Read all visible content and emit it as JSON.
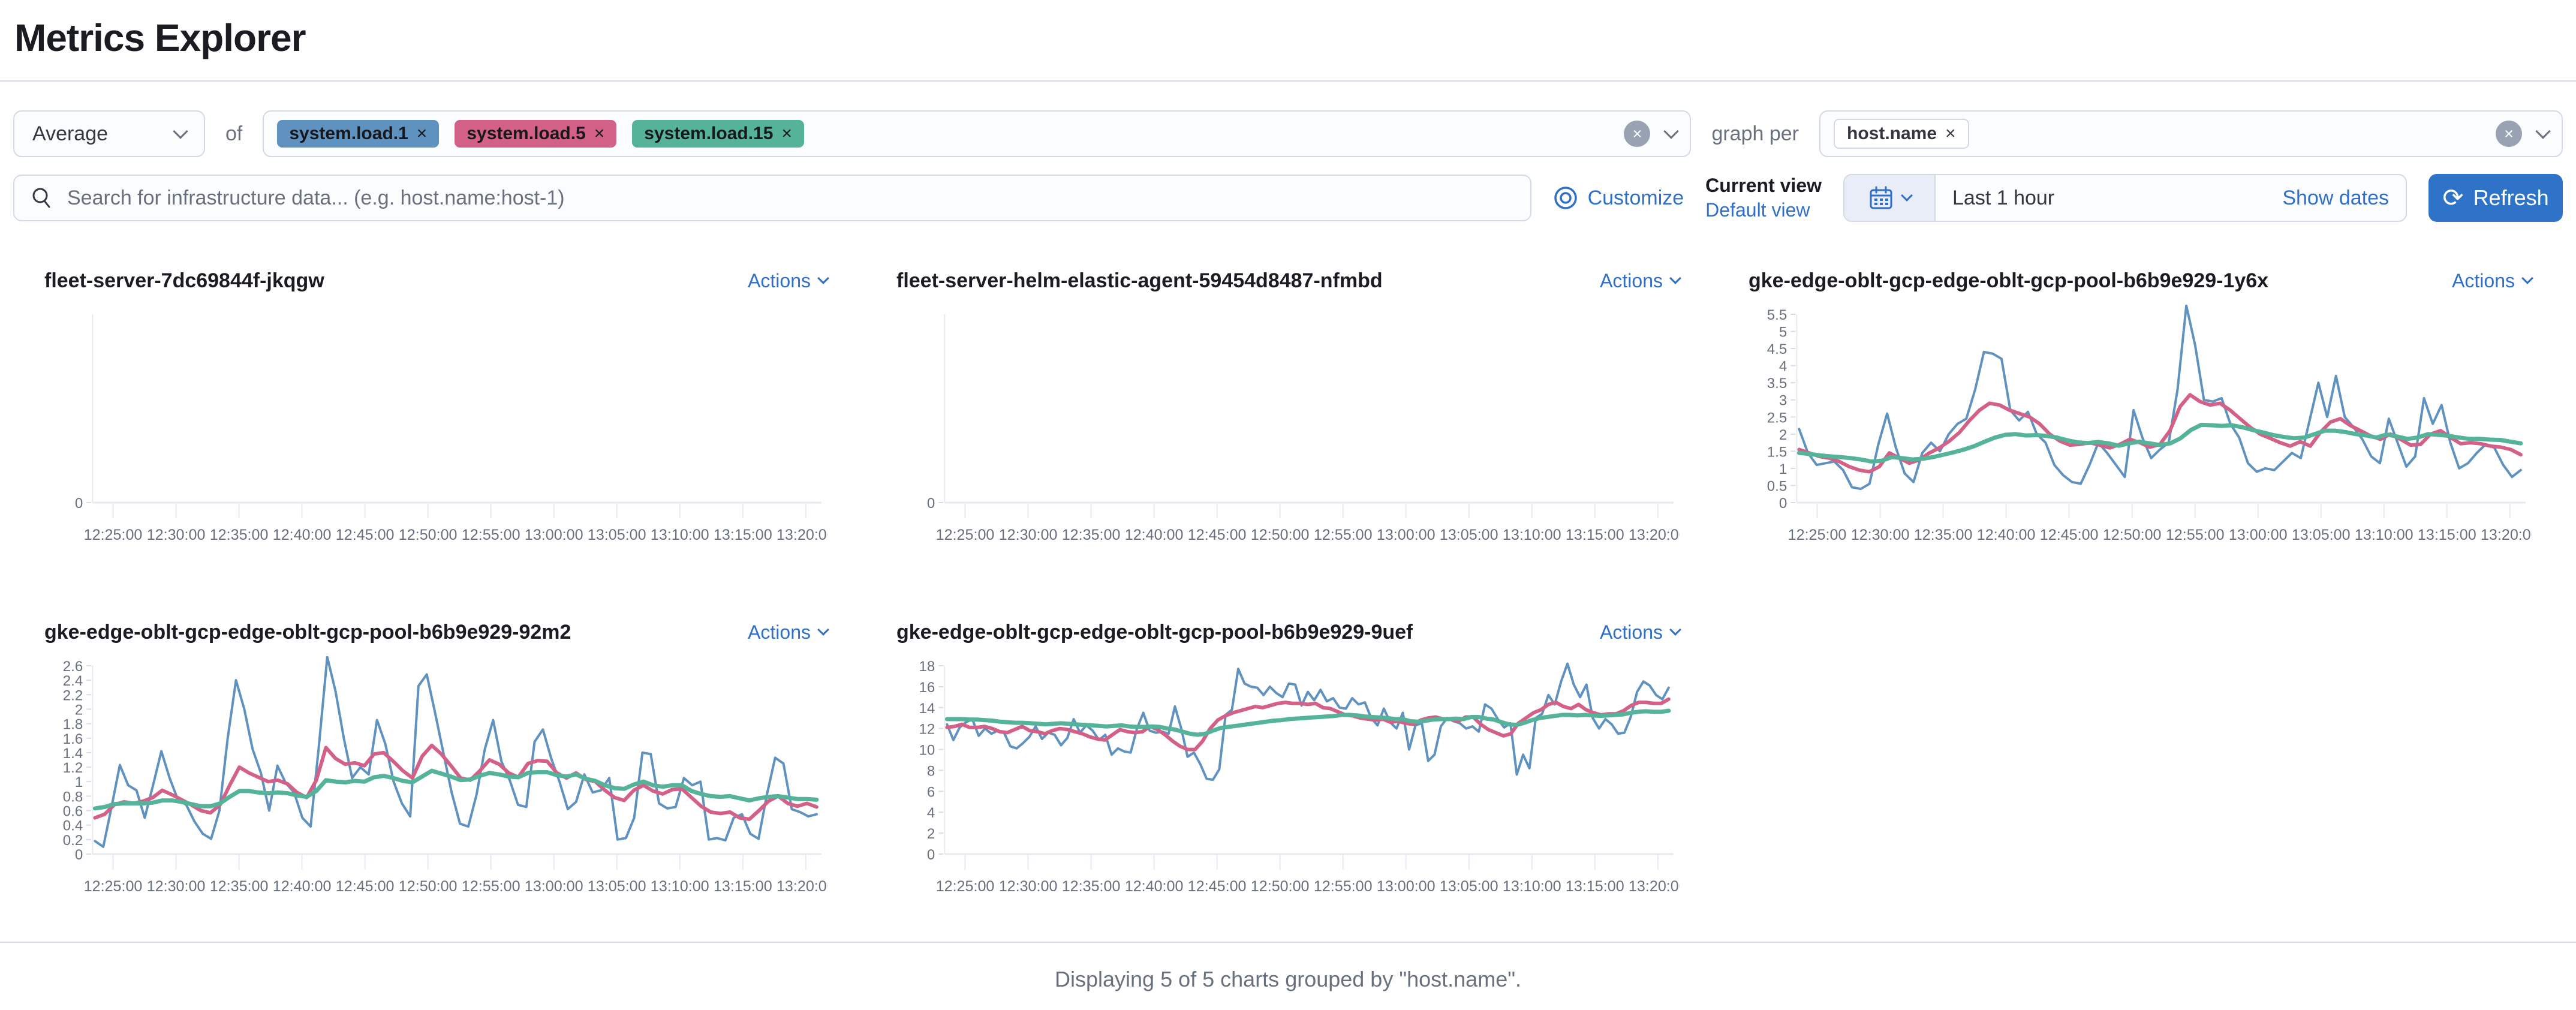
{
  "page": {
    "title": "Metrics Explorer",
    "footer": "Displaying 5 of 5 charts grouped by \"host.name\"."
  },
  "toolbar": {
    "aggregation": {
      "value": "Average"
    },
    "of_label": "of",
    "metrics": [
      {
        "label": "system.load.1",
        "remove": "×",
        "color": "#6092C0"
      },
      {
        "label": "system.load.5",
        "remove": "×",
        "color": "#D36086"
      },
      {
        "label": "system.load.15",
        "remove": "×",
        "color": "#54B399"
      }
    ],
    "graph_per_label": "graph per",
    "groupings": [
      {
        "label": "host.name",
        "remove": "×"
      }
    ],
    "search": {
      "placeholder": "Search for infrastructure data... (e.g. host.name:host-1)"
    },
    "customize_label": "Customize",
    "view": {
      "current": "Current view",
      "default": "Default view"
    },
    "time": {
      "range": "Last 1 hour",
      "show_dates": "Show dates",
      "refresh_label": "Refresh",
      "refresh_glyph": "⟳"
    }
  },
  "actions_label": "Actions",
  "chart_data": [
    {
      "type": "line",
      "title": "fleet-server-7dc69844f-jkqgw",
      "x_ticks": [
        "12:25:00",
        "12:30:00",
        "12:35:00",
        "12:40:00",
        "12:45:00",
        "12:50:00",
        "12:55:00",
        "13:00:00",
        "13:05:00",
        "13:10:00",
        "13:15:00",
        "13:20:00"
      ],
      "y_ticks": [
        0
      ],
      "ylim": [
        0,
        1
      ],
      "series": []
    },
    {
      "type": "line",
      "title": "fleet-server-helm-elastic-agent-59454d8487-nfmbd",
      "x_ticks": [
        "12:25:00",
        "12:30:00",
        "12:35:00",
        "12:40:00",
        "12:45:00",
        "12:50:00",
        "12:55:00",
        "13:00:00",
        "13:05:00",
        "13:10:00",
        "13:15:00",
        "13:20:00"
      ],
      "y_ticks": [
        0
      ],
      "ylim": [
        0,
        1
      ],
      "series": []
    },
    {
      "type": "line",
      "title": "gke-edge-oblt-gcp-edge-oblt-gcp-pool-b6b9e929-1y6x",
      "x_ticks": [
        "12:25:00",
        "12:30:00",
        "12:35:00",
        "12:40:00",
        "12:45:00",
        "12:50:00",
        "12:55:00",
        "13:00:00",
        "13:05:00",
        "13:10:00",
        "13:15:00",
        "13:20:00"
      ],
      "y_ticks": [
        0,
        0.5,
        1,
        1.5,
        2,
        2.5,
        3,
        3.5,
        4,
        4.5,
        5,
        5.5
      ],
      "ylim": [
        0,
        5.5
      ],
      "series": [
        {
          "name": "system.load.1",
          "color": "#6092C0",
          "width": 4,
          "values": [
            2.15,
            1.45,
            1.1,
            1.15,
            1.2,
            0.95,
            0.45,
            0.4,
            0.55,
            1.7,
            2.6,
            1.6,
            0.85,
            0.6,
            1.45,
            1.75,
            1.5,
            2.0,
            2.3,
            2.45,
            3.3,
            4.4,
            4.35,
            4.2,
            2.7,
            2.4,
            2.65,
            2.0,
            1.75,
            1.1,
            0.8,
            0.6,
            0.55,
            1.1,
            1.75,
            1.45,
            1.1,
            0.75,
            2.7,
            1.9,
            1.3,
            1.55,
            1.75,
            3.3,
            5.75,
            4.6,
            3.0,
            2.95,
            3.05,
            2.3,
            1.9,
            1.15,
            0.9,
            1.0,
            0.95,
            1.2,
            1.45,
            1.3,
            2.4,
            3.5,
            2.5,
            3.7,
            2.5,
            2.2,
            1.85,
            1.35,
            1.15,
            2.45,
            1.75,
            1.05,
            1.35,
            3.05,
            2.3,
            2.85,
            1.75,
            1.0,
            1.15,
            1.45,
            1.7,
            1.6,
            1.1,
            0.75,
            0.95
          ]
        },
        {
          "name": "system.load.5",
          "color": "#D36086",
          "width": 6,
          "values": [
            1.55,
            1.45,
            1.35,
            1.3,
            1.2,
            1.05,
            0.95,
            0.9,
            1.05,
            1.45,
            1.3,
            1.15,
            1.25,
            1.45,
            1.6,
            1.8,
            2.05,
            2.4,
            2.7,
            2.9,
            2.85,
            2.7,
            2.6,
            2.5,
            2.3,
            2.0,
            1.8,
            1.68,
            1.7,
            1.75,
            1.68,
            1.6,
            1.7,
            1.85,
            1.75,
            1.62,
            1.7,
            2.1,
            2.8,
            3.15,
            2.95,
            2.85,
            2.9,
            2.7,
            2.45,
            2.2,
            2.0,
            1.88,
            1.75,
            1.65,
            1.78,
            1.65,
            2.05,
            2.35,
            2.45,
            2.25,
            2.1,
            1.95,
            1.85,
            2.0,
            1.85,
            1.68,
            1.7,
            2.0,
            2.1,
            1.9,
            1.72,
            1.75,
            1.72,
            1.65,
            1.62,
            1.55,
            1.4
          ]
        },
        {
          "name": "system.load.15",
          "color": "#54B399",
          "width": 7,
          "values": [
            1.45,
            1.42,
            1.38,
            1.35,
            1.33,
            1.3,
            1.26,
            1.2,
            1.22,
            1.33,
            1.3,
            1.26,
            1.28,
            1.33,
            1.4,
            1.47,
            1.55,
            1.65,
            1.78,
            1.9,
            1.98,
            2.0,
            1.96,
            1.97,
            1.95,
            1.9,
            1.82,
            1.76,
            1.74,
            1.77,
            1.73,
            1.66,
            1.73,
            1.78,
            1.73,
            1.68,
            1.73,
            1.88,
            2.12,
            2.27,
            2.26,
            2.24,
            2.26,
            2.2,
            2.12,
            2.05,
            1.97,
            1.92,
            1.88,
            1.9,
            2.0,
            2.1,
            2.1,
            2.06,
            2.0,
            1.96,
            1.9,
            1.99,
            1.93,
            1.86,
            1.9,
            2.0,
            1.98,
            1.95,
            1.9,
            1.86,
            1.86,
            1.84,
            1.83,
            1.78,
            1.73
          ]
        }
      ]
    },
    {
      "type": "line",
      "title": "gke-edge-oblt-gcp-edge-oblt-gcp-pool-b6b9e929-92m2",
      "x_ticks": [
        "12:25:00",
        "12:30:00",
        "12:35:00",
        "12:40:00",
        "12:45:00",
        "12:50:00",
        "12:55:00",
        "13:00:00",
        "13:05:00",
        "13:10:00",
        "13:15:00",
        "13:20:00"
      ],
      "y_ticks": [
        0,
        0.2,
        0.4,
        0.6,
        0.8,
        1,
        1.2,
        1.4,
        1.6,
        1.8,
        2,
        2.2,
        2.4,
        2.6
      ],
      "ylim": [
        0,
        2.6
      ],
      "series": [
        {
          "name": "system.load.1",
          "color": "#6092C0",
          "width": 4,
          "values": [
            0.18,
            0.1,
            0.65,
            1.23,
            0.95,
            0.88,
            0.5,
            0.95,
            1.42,
            1.05,
            0.75,
            0.68,
            0.45,
            0.28,
            0.21,
            0.6,
            1.6,
            2.4,
            2.0,
            1.45,
            1.12,
            0.6,
            1.22,
            0.98,
            0.85,
            0.5,
            0.38,
            1.5,
            2.72,
            2.25,
            1.6,
            1.05,
            1.2,
            1.1,
            1.85,
            1.52,
            1.0,
            0.7,
            0.52,
            2.32,
            2.48,
            1.95,
            1.4,
            0.85,
            0.42,
            0.38,
            0.82,
            1.45,
            1.85,
            1.28,
            1.02,
            0.68,
            0.65,
            1.55,
            1.72,
            1.32,
            1.0,
            0.62,
            0.72,
            1.1,
            0.85,
            0.88,
            1.05,
            0.2,
            0.22,
            0.5,
            1.4,
            1.38,
            0.7,
            0.63,
            0.65,
            1.05,
            0.95,
            1.0,
            0.2,
            0.22,
            0.19,
            0.5,
            0.55,
            0.28,
            0.21,
            0.82,
            1.33,
            1.25,
            0.62,
            0.58,
            0.52,
            0.55
          ]
        },
        {
          "name": "system.load.5",
          "color": "#D36086",
          "width": 6,
          "values": [
            0.5,
            0.55,
            0.68,
            0.72,
            0.7,
            0.73,
            0.78,
            0.88,
            0.82,
            0.75,
            0.68,
            0.6,
            0.57,
            0.68,
            0.95,
            1.2,
            1.12,
            1.06,
            1.0,
            1.02,
            0.97,
            0.85,
            0.78,
            1.02,
            1.47,
            1.32,
            1.24,
            1.26,
            1.22,
            1.38,
            1.4,
            1.28,
            1.15,
            1.05,
            1.35,
            1.5,
            1.38,
            1.22,
            1.05,
            1.02,
            1.15,
            1.3,
            1.24,
            1.12,
            1.06,
            1.25,
            1.29,
            1.28,
            1.12,
            1.05,
            1.12,
            1.03,
            1.0,
            0.88,
            0.78,
            0.74,
            0.88,
            0.95,
            0.87,
            0.83,
            0.89,
            0.9,
            0.78,
            0.66,
            0.58,
            0.56,
            0.58,
            0.5,
            0.48,
            0.6,
            0.73,
            0.8,
            0.7,
            0.66,
            0.7,
            0.65
          ]
        },
        {
          "name": "system.load.15",
          "color": "#54B399",
          "width": 7,
          "values": [
            0.63,
            0.65,
            0.69,
            0.7,
            0.7,
            0.7,
            0.71,
            0.74,
            0.74,
            0.72,
            0.69,
            0.66,
            0.66,
            0.7,
            0.79,
            0.87,
            0.87,
            0.85,
            0.84,
            0.85,
            0.84,
            0.81,
            0.79,
            0.87,
            1.02,
            1.0,
            0.99,
            1.01,
            1.0,
            1.06,
            1.08,
            1.05,
            1.01,
            0.99,
            1.07,
            1.15,
            1.11,
            1.07,
            1.02,
            1.03,
            1.08,
            1.12,
            1.1,
            1.07,
            1.06,
            1.12,
            1.13,
            1.13,
            1.09,
            1.07,
            1.1,
            1.04,
            1.01,
            0.95,
            0.91,
            0.9,
            0.96,
            1.0,
            0.95,
            0.93,
            0.95,
            0.95,
            0.87,
            0.83,
            0.8,
            0.79,
            0.8,
            0.77,
            0.74,
            0.77,
            0.79,
            0.8,
            0.78,
            0.76,
            0.76,
            0.75
          ]
        }
      ]
    },
    {
      "type": "line",
      "title": "gke-edge-oblt-gcp-edge-oblt-gcp-pool-b6b9e929-9uef",
      "x_ticks": [
        "12:25:00",
        "12:30:00",
        "12:35:00",
        "12:40:00",
        "12:45:00",
        "12:50:00",
        "12:55:00",
        "13:00:00",
        "13:05:00",
        "13:10:00",
        "13:15:00",
        "13:20:00"
      ],
      "y_ticks": [
        0,
        2,
        4,
        6,
        8,
        10,
        12,
        14,
        16,
        18
      ],
      "ylim": [
        0,
        18
      ],
      "series": [
        {
          "name": "system.load.1",
          "color": "#6092C0",
          "width": 4,
          "values": [
            12.4,
            10.9,
            12.1,
            12.6,
            12.9,
            11.3,
            12.0,
            11.5,
            11.8,
            11.6,
            10.3,
            10.1,
            10.6,
            11.2,
            12.2,
            11.0,
            11.6,
            11.4,
            10.4,
            11.1,
            12.9,
            11.6,
            12.3,
            11.8,
            10.9,
            11.4,
            9.5,
            10.1,
            9.8,
            9.7,
            12.0,
            13.5,
            11.8,
            11.6,
            11.7,
            11.5,
            14.1,
            12.0,
            9.3,
            9.7,
            8.6,
            7.2,
            7.1,
            8.1,
            13.3,
            13.8,
            17.7,
            16.3,
            16.0,
            15.9,
            15.2,
            16.0,
            15.4,
            15.0,
            16.3,
            16.2,
            14.2,
            15.5,
            14.7,
            15.7,
            14.6,
            14.9,
            14.0,
            13.9,
            14.9,
            14.3,
            14.5,
            13.0,
            12.3,
            13.9,
            12.6,
            12.0,
            13.5,
            10.0,
            12.3,
            12.5,
            8.9,
            9.5,
            12.2,
            13.0,
            12.7,
            12.5,
            12.0,
            12.2,
            11.7,
            14.3,
            13.9,
            12.9,
            12.1,
            12.5,
            7.6,
            9.5,
            8.2,
            13.0,
            13.4,
            15.2,
            14.3,
            16.5,
            18.2,
            16.2,
            15.0,
            16.2,
            13.0,
            12.0,
            12.9,
            12.4,
            11.5,
            11.6,
            13.1,
            15.5,
            16.5,
            16.1,
            15.2,
            14.8,
            15.9
          ]
        },
        {
          "name": "system.load.5",
          "color": "#D36086",
          "width": 6,
          "values": [
            12.1,
            12.2,
            12.4,
            12.1,
            12.1,
            12.2,
            12.0,
            11.7,
            11.6,
            11.9,
            12.2,
            11.8,
            11.7,
            11.5,
            11.8,
            12.0,
            11.9,
            11.7,
            11.5,
            11.2,
            11.0,
            10.9,
            11.4,
            11.9,
            11.7,
            11.6,
            11.7,
            12.2,
            11.9,
            11.4,
            10.8,
            10.3,
            10.0,
            10.0,
            10.8,
            12.0,
            12.8,
            13.2,
            13.5,
            13.7,
            13.9,
            14.1,
            14.0,
            14.2,
            14.4,
            14.5,
            14.4,
            14.4,
            14.3,
            14.4,
            14.0,
            13.9,
            13.6,
            13.3,
            13.2,
            13.0,
            12.9,
            12.8,
            12.9,
            12.6,
            12.7,
            12.5,
            12.4,
            12.8,
            13.0,
            13.1,
            12.9,
            12.9,
            12.7,
            13.1,
            13.1,
            12.4,
            11.9,
            11.6,
            11.3,
            11.5,
            12.5,
            13.0,
            13.5,
            13.8,
            14.3,
            14.5,
            14.1,
            13.9,
            14.3,
            13.8,
            13.5,
            13.3,
            13.4,
            13.4,
            13.7,
            14.2,
            14.5,
            14.5,
            14.4,
            14.4,
            14.8
          ]
        },
        {
          "name": "system.load.15",
          "color": "#54B399",
          "width": 7,
          "values": [
            12.9,
            12.9,
            12.9,
            12.85,
            12.85,
            12.8,
            12.75,
            12.65,
            12.6,
            12.55,
            12.55,
            12.5,
            12.45,
            12.4,
            12.45,
            12.5,
            12.45,
            12.4,
            12.35,
            12.3,
            12.25,
            12.2,
            12.25,
            12.3,
            12.2,
            12.15,
            12.15,
            12.2,
            12.15,
            12.0,
            11.9,
            11.7,
            11.5,
            11.4,
            11.5,
            11.8,
            12.05,
            12.15,
            12.25,
            12.35,
            12.45,
            12.55,
            12.65,
            12.75,
            12.8,
            12.9,
            12.95,
            13.0,
            13.05,
            13.1,
            13.15,
            13.2,
            13.3,
            13.3,
            13.25,
            13.15,
            13.1,
            13.05,
            13.0,
            12.9,
            12.9,
            12.7,
            12.65,
            12.75,
            12.85,
            12.9,
            12.9,
            12.95,
            12.9,
            13.1,
            13.1,
            12.95,
            12.85,
            12.6,
            12.4,
            12.35,
            12.55,
            12.8,
            13.0,
            13.1,
            13.2,
            13.3,
            13.3,
            13.25,
            13.3,
            13.25,
            13.2,
            13.25,
            13.3,
            13.35,
            13.5,
            13.6,
            13.65,
            13.6,
            13.6,
            13.7
          ]
        }
      ]
    }
  ]
}
